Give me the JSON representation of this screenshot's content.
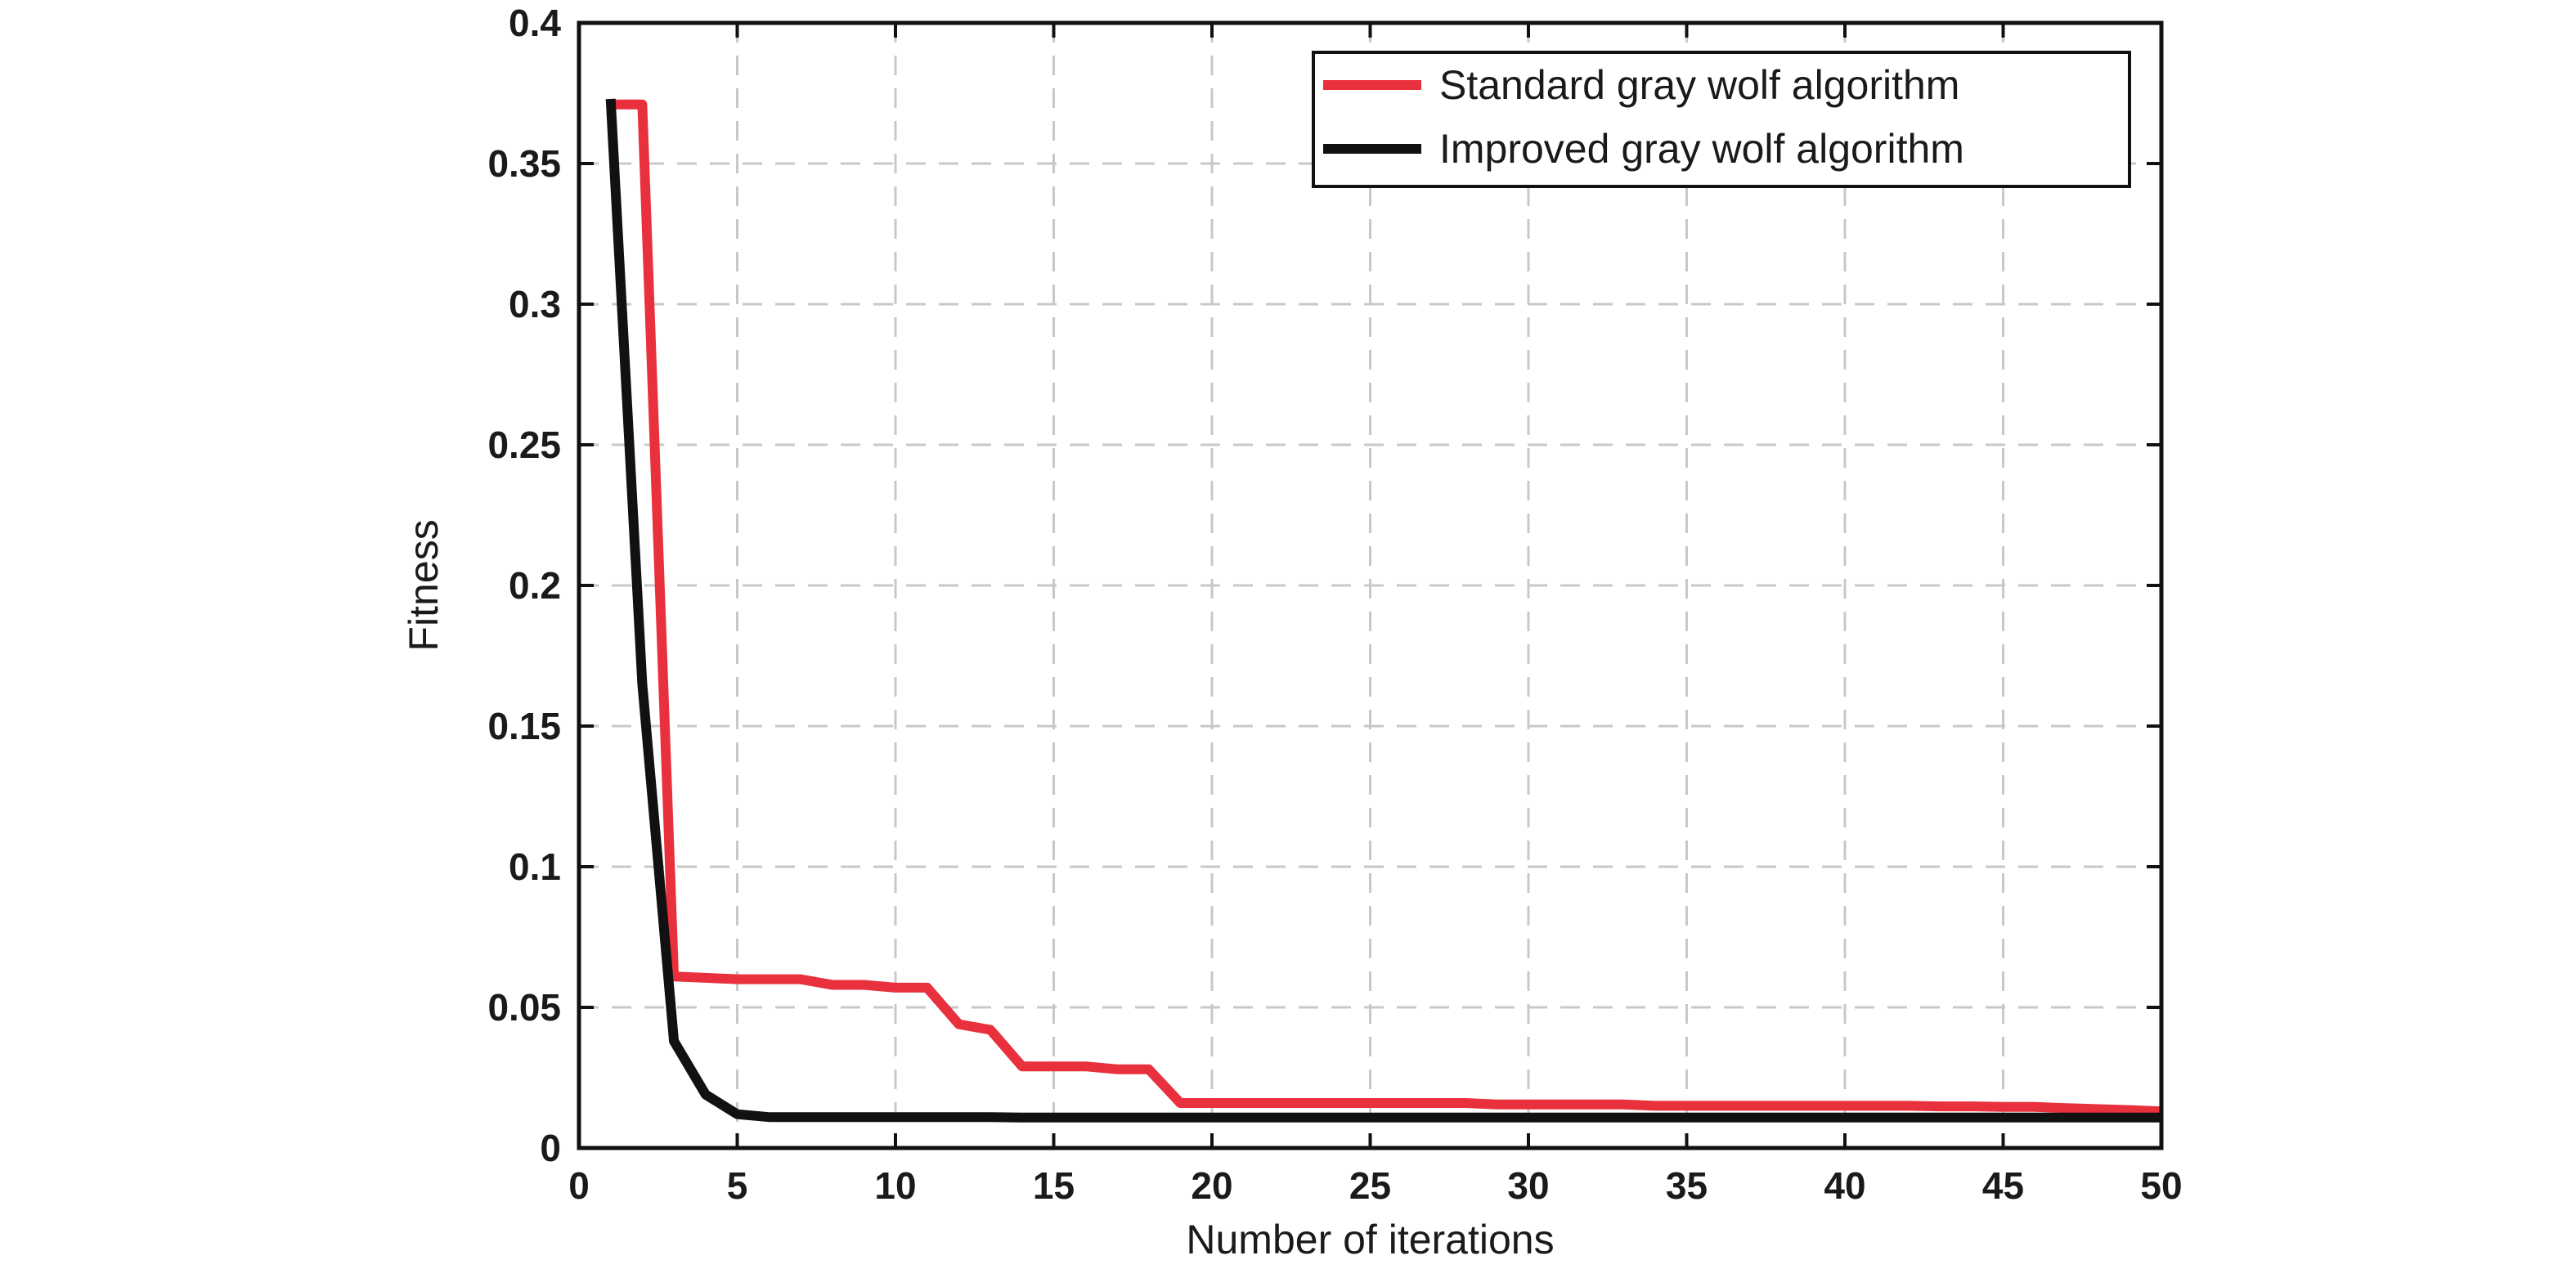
{
  "chart_data": {
    "type": "line",
    "title": "",
    "xlabel": "Number of iterations",
    "ylabel": "Fitness",
    "xlim": [
      0,
      50
    ],
    "ylim": [
      0,
      0.4
    ],
    "xticks": [
      0,
      5,
      10,
      15,
      20,
      25,
      30,
      35,
      40,
      45,
      50
    ],
    "yticks": [
      0,
      0.05,
      0.1,
      0.15,
      0.2,
      0.25,
      0.3,
      0.35,
      0.4
    ],
    "xtick_labels": [
      "0",
      "5",
      "10",
      "15",
      "20",
      "25",
      "30",
      "35",
      "40",
      "45",
      "50"
    ],
    "ytick_labels": [
      "0",
      "0.05",
      "0.1",
      "0.15",
      "0.2",
      "0.25",
      "0.3",
      "0.35",
      "0.4"
    ],
    "grid": true,
    "legend_position": "top-right",
    "series": [
      {
        "name": "Standard gray wolf algorithm",
        "color": "#e8313c",
        "x": [
          1,
          2,
          3,
          4,
          5,
          6,
          7,
          8,
          9,
          10,
          11,
          12,
          13,
          14,
          15,
          16,
          17,
          18,
          19,
          20,
          21,
          22,
          23,
          24,
          25,
          26,
          27,
          28,
          29,
          30,
          31,
          32,
          33,
          34,
          35,
          36,
          37,
          38,
          39,
          40,
          41,
          42,
          43,
          44,
          45,
          46,
          47,
          48,
          49,
          50
        ],
        "y": [
          0.371,
          0.371,
          0.061,
          0.0605,
          0.06,
          0.06,
          0.06,
          0.058,
          0.058,
          0.057,
          0.057,
          0.044,
          0.042,
          0.029,
          0.029,
          0.029,
          0.028,
          0.028,
          0.016,
          0.016,
          0.016,
          0.016,
          0.016,
          0.016,
          0.016,
          0.016,
          0.016,
          0.016,
          0.0155,
          0.0155,
          0.0155,
          0.0155,
          0.0155,
          0.015,
          0.015,
          0.015,
          0.015,
          0.015,
          0.015,
          0.015,
          0.015,
          0.015,
          0.0148,
          0.0148,
          0.0146,
          0.0146,
          0.0142,
          0.0138,
          0.0135,
          0.013
        ]
      },
      {
        "name": "Improved gray wolf algorithm",
        "color": "#111111",
        "x": [
          1,
          2,
          3,
          4,
          5,
          6,
          7,
          8,
          9,
          10,
          11,
          12,
          13,
          14,
          15,
          16,
          17,
          18,
          19,
          20,
          21,
          22,
          23,
          24,
          25,
          26,
          27,
          28,
          29,
          30,
          31,
          32,
          33,
          34,
          35,
          36,
          37,
          38,
          39,
          40,
          41,
          42,
          43,
          44,
          45,
          46,
          47,
          48,
          49,
          50
        ],
        "y": [
          0.373,
          0.165,
          0.038,
          0.019,
          0.012,
          0.011,
          0.011,
          0.011,
          0.011,
          0.011,
          0.011,
          0.011,
          0.011,
          0.0108,
          0.0108,
          0.0108,
          0.0108,
          0.0108,
          0.0108,
          0.0108,
          0.0108,
          0.0108,
          0.0108,
          0.0108,
          0.0108,
          0.0108,
          0.0108,
          0.0108,
          0.0108,
          0.0108,
          0.0108,
          0.0108,
          0.0108,
          0.0108,
          0.0108,
          0.0108,
          0.0108,
          0.0108,
          0.0108,
          0.0108,
          0.0108,
          0.0108,
          0.0108,
          0.0108,
          0.0108,
          0.0108,
          0.0108,
          0.0108,
          0.0108,
          0.0108
        ]
      }
    ]
  }
}
